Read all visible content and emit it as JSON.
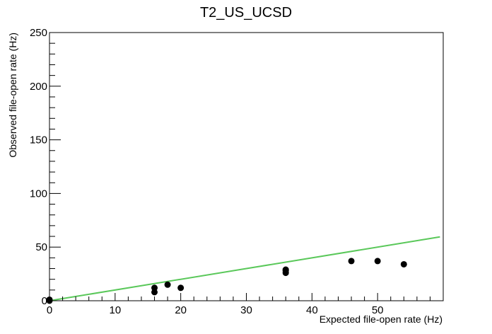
{
  "chart_data": {
    "type": "scatter",
    "title": "T2_US_UCSD",
    "xlabel": "Expected file-open rate (Hz)",
    "ylabel": "Observed file-open rate (Hz)",
    "xlim": [
      0,
      60
    ],
    "ylim": [
      0,
      250
    ],
    "x_major_ticks": [
      0,
      10,
      20,
      30,
      40,
      50
    ],
    "x_tick_labels": [
      "0",
      "10",
      "20",
      "30",
      "40",
      "50"
    ],
    "y_major_ticks": [
      0,
      50,
      100,
      150,
      200,
      250
    ],
    "y_tick_labels": [
      "0",
      "50",
      "100",
      "150",
      "200",
      "250"
    ],
    "x_minor_step": 2,
    "y_minor_step": 10,
    "grid": false,
    "points": [
      {
        "x": 0,
        "y": 0
      },
      {
        "x": 0,
        "y": 1
      },
      {
        "x": 16,
        "y": 8
      },
      {
        "x": 16,
        "y": 12
      },
      {
        "x": 18,
        "y": 15
      },
      {
        "x": 20,
        "y": 12
      },
      {
        "x": 36,
        "y": 26
      },
      {
        "x": 36,
        "y": 28
      },
      {
        "x": 36,
        "y": 29
      },
      {
        "x": 46,
        "y": 37
      },
      {
        "x": 50,
        "y": 37
      },
      {
        "x": 54,
        "y": 34
      }
    ],
    "reference_line": {
      "x": [
        0,
        60
      ],
      "y": [
        0,
        60
      ]
    },
    "colors": {
      "points": "#000000",
      "reference_line": "#5ac85a",
      "axes": "#000000"
    }
  }
}
